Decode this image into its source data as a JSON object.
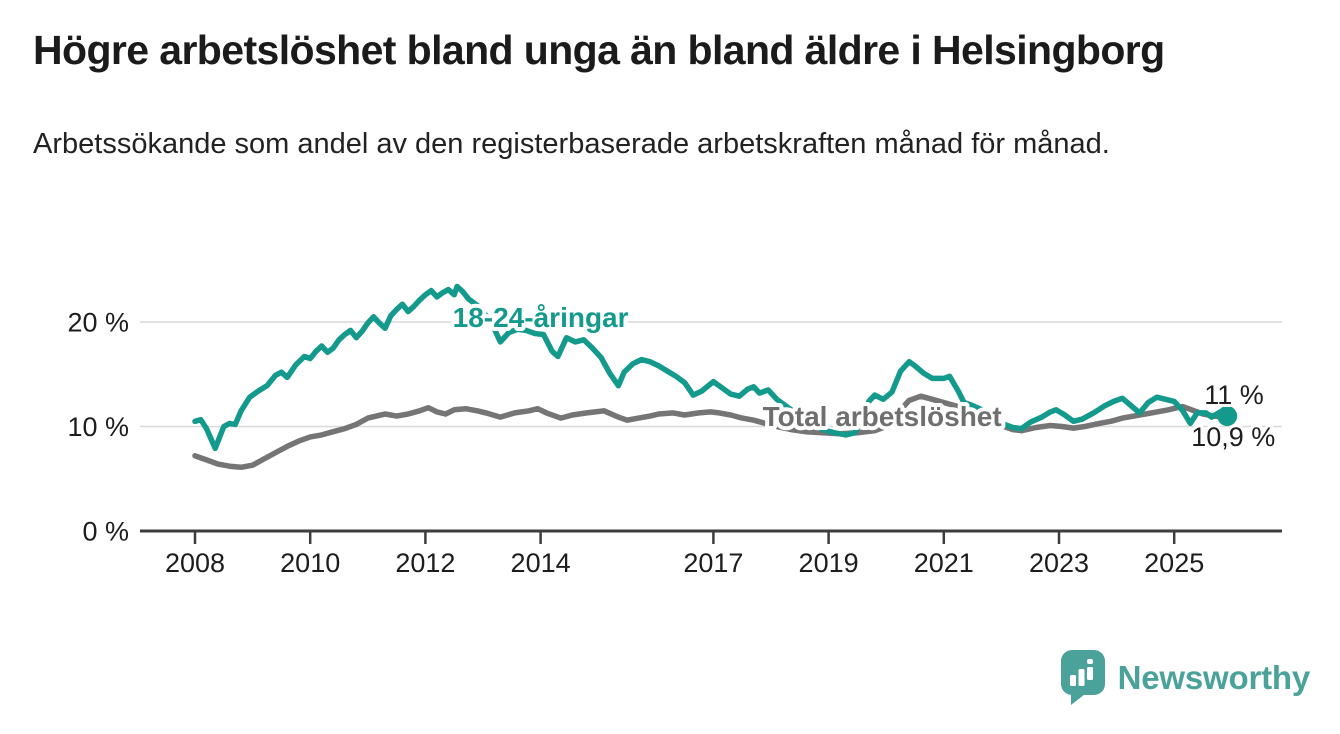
{
  "header": {
    "title": "Högre arbetslöshet bland unga än bland äldre i Helsingborg",
    "subtitle": "Arbetssökande som andel av den registerbaserade arbetskraften månad för månad."
  },
  "footer": {
    "brand": "Newsworthy",
    "logo_icon": "newsworthy-speech-bubble-bar-chart-icon",
    "brand_color": "#4aa29a"
  },
  "colors": {
    "young_series": "#149a8c",
    "total_series": "#757575",
    "total_label": "#6f6f6f",
    "axis": "#3d3d3d",
    "gridline": "#d9d9d9",
    "text": "#1d1d1d",
    "background": "#ffffff"
  },
  "chart_data": {
    "type": "line",
    "title": "Högre arbetslöshet bland unga än bland äldre i Helsingborg",
    "subtitle": "Arbetssökande som andel av den registerbaserade arbetskraften månad för månad.",
    "xlabel": "",
    "ylabel": "",
    "x_unit": "year_decimal_monthly",
    "y_unit": "percent_of_labour_force",
    "xlim": [
      2007.6,
      2026.3
    ],
    "ylim": [
      0,
      24
    ],
    "grid": "horizontal",
    "yticks": [
      {
        "value": 0,
        "label": "0 %"
      },
      {
        "value": 10,
        "label": "10 %"
      },
      {
        "value": 20,
        "label": "20 %"
      }
    ],
    "xticks": [
      {
        "value": 2008,
        "label": "2008"
      },
      {
        "value": 2010,
        "label": "2010"
      },
      {
        "value": 2012,
        "label": "2012"
      },
      {
        "value": 2014,
        "label": "2014"
      },
      {
        "value": 2017,
        "label": "2017"
      },
      {
        "value": 2019,
        "label": "2019"
      },
      {
        "value": 2021,
        "label": "2021"
      },
      {
        "value": 2023,
        "label": "2023"
      },
      {
        "value": 2025,
        "label": "2025"
      }
    ],
    "series": [
      {
        "name": "Total arbetslöshet",
        "color": "#757575",
        "line_width": 5.5,
        "end_dot": false,
        "latest_value_label": "10,9 %",
        "end_label_offset": {
          "dx": -36,
          "dy": 29
        },
        "inline_label": {
          "text": "Total arbetslöshet",
          "x_year": 2019.93,
          "y_percent": 11.0,
          "color": "#6f6f6f"
        },
        "points": [
          [
            2008.0,
            7.2
          ],
          [
            2008.2,
            6.8
          ],
          [
            2008.4,
            6.4
          ],
          [
            2008.6,
            6.2
          ],
          [
            2008.8,
            6.1
          ],
          [
            2009.0,
            6.3
          ],
          [
            2009.2,
            6.9
          ],
          [
            2009.4,
            7.5
          ],
          [
            2009.6,
            8.1
          ],
          [
            2009.8,
            8.6
          ],
          [
            2010.0,
            9.0
          ],
          [
            2010.2,
            9.2
          ],
          [
            2010.4,
            9.5
          ],
          [
            2010.6,
            9.8
          ],
          [
            2010.8,
            10.2
          ],
          [
            2011.0,
            10.8
          ],
          [
            2011.15,
            11.0
          ],
          [
            2011.3,
            11.2
          ],
          [
            2011.5,
            11.0
          ],
          [
            2011.7,
            11.2
          ],
          [
            2011.9,
            11.5
          ],
          [
            2012.05,
            11.8
          ],
          [
            2012.2,
            11.4
          ],
          [
            2012.35,
            11.2
          ],
          [
            2012.5,
            11.6
          ],
          [
            2012.7,
            11.7
          ],
          [
            2012.9,
            11.5
          ],
          [
            2013.05,
            11.3
          ],
          [
            2013.3,
            10.9
          ],
          [
            2013.55,
            11.3
          ],
          [
            2013.8,
            11.5
          ],
          [
            2013.95,
            11.7
          ],
          [
            2014.1,
            11.3
          ],
          [
            2014.35,
            10.8
          ],
          [
            2014.55,
            11.1
          ],
          [
            2014.8,
            11.3
          ],
          [
            2014.95,
            11.4
          ],
          [
            2015.1,
            11.5
          ],
          [
            2015.35,
            10.9
          ],
          [
            2015.5,
            10.6
          ],
          [
            2015.7,
            10.8
          ],
          [
            2015.9,
            11.0
          ],
          [
            2016.05,
            11.2
          ],
          [
            2016.3,
            11.3
          ],
          [
            2016.5,
            11.1
          ],
          [
            2016.75,
            11.3
          ],
          [
            2016.95,
            11.4
          ],
          [
            2017.1,
            11.3
          ],
          [
            2017.3,
            11.1
          ],
          [
            2017.5,
            10.8
          ],
          [
            2017.7,
            10.6
          ],
          [
            2017.9,
            10.3
          ],
          [
            2018.1,
            10.0
          ],
          [
            2018.35,
            9.7
          ],
          [
            2018.6,
            9.5
          ],
          [
            2018.9,
            9.4
          ],
          [
            2019.2,
            9.3
          ],
          [
            2019.5,
            9.4
          ],
          [
            2019.8,
            9.6
          ],
          [
            2020.0,
            10.0
          ],
          [
            2020.2,
            11.3
          ],
          [
            2020.4,
            12.5
          ],
          [
            2020.6,
            12.9
          ],
          [
            2020.8,
            12.6
          ],
          [
            2021.0,
            12.3
          ],
          [
            2021.25,
            11.9
          ],
          [
            2021.5,
            11.3
          ],
          [
            2021.75,
            10.7
          ],
          [
            2022.0,
            10.1
          ],
          [
            2022.2,
            9.7
          ],
          [
            2022.35,
            9.6
          ],
          [
            2022.6,
            9.9
          ],
          [
            2022.85,
            10.1
          ],
          [
            2023.05,
            10.0
          ],
          [
            2023.25,
            9.85
          ],
          [
            2023.45,
            10.0
          ],
          [
            2023.7,
            10.3
          ],
          [
            2023.9,
            10.5
          ],
          [
            2024.1,
            10.8
          ],
          [
            2024.3,
            11.0
          ],
          [
            2024.5,
            11.2
          ],
          [
            2024.7,
            11.4
          ],
          [
            2024.9,
            11.6
          ],
          [
            2025.05,
            11.8
          ],
          [
            2025.15,
            11.9
          ],
          [
            2025.3,
            11.6
          ],
          [
            2025.5,
            11.2
          ],
          [
            2025.7,
            11.0
          ],
          [
            2025.92,
            10.9
          ]
        ]
      },
      {
        "name": "18-24-åringar",
        "color": "#149a8c",
        "line_width": 5.5,
        "end_dot": true,
        "end_dot_radius": 10,
        "latest_value_label": "11 %",
        "end_label_offset": {
          "dx": -23,
          "dy": -12
        },
        "inline_label": {
          "text": "18-24-åringar",
          "x_year": 2014.0,
          "y_percent": 20.5,
          "color": "#149a8c"
        },
        "points": [
          [
            2008.0,
            10.5
          ],
          [
            2008.1,
            10.65
          ],
          [
            2008.2,
            9.8
          ],
          [
            2008.35,
            7.9
          ],
          [
            2008.5,
            10.0
          ],
          [
            2008.6,
            10.3
          ],
          [
            2008.7,
            10.2
          ],
          [
            2008.8,
            11.5
          ],
          [
            2008.95,
            12.8
          ],
          [
            2009.1,
            13.4
          ],
          [
            2009.25,
            13.9
          ],
          [
            2009.4,
            14.9
          ],
          [
            2009.5,
            15.2
          ],
          [
            2009.6,
            14.7
          ],
          [
            2009.75,
            15.9
          ],
          [
            2009.9,
            16.7
          ],
          [
            2010.0,
            16.5
          ],
          [
            2010.1,
            17.2
          ],
          [
            2010.2,
            17.7
          ],
          [
            2010.3,
            17.1
          ],
          [
            2010.4,
            17.5
          ],
          [
            2010.5,
            18.3
          ],
          [
            2010.6,
            18.8
          ],
          [
            2010.7,
            19.2
          ],
          [
            2010.8,
            18.5
          ],
          [
            2010.9,
            19.1
          ],
          [
            2011.0,
            19.9
          ],
          [
            2011.1,
            20.5
          ],
          [
            2011.2,
            19.9
          ],
          [
            2011.3,
            19.4
          ],
          [
            2011.4,
            20.6
          ],
          [
            2011.5,
            21.2
          ],
          [
            2011.6,
            21.7
          ],
          [
            2011.7,
            21.0
          ],
          [
            2011.8,
            21.5
          ],
          [
            2011.9,
            22.1
          ],
          [
            2012.0,
            22.6
          ],
          [
            2012.1,
            23.0
          ],
          [
            2012.2,
            22.4
          ],
          [
            2012.3,
            22.8
          ],
          [
            2012.4,
            23.1
          ],
          [
            2012.5,
            22.6
          ],
          [
            2012.55,
            23.4
          ],
          [
            2012.65,
            22.9
          ],
          [
            2012.75,
            22.2
          ],
          [
            2012.9,
            21.6
          ],
          [
            2013.0,
            21.0
          ],
          [
            2013.15,
            19.9
          ],
          [
            2013.3,
            18.1
          ],
          [
            2013.45,
            19.0
          ],
          [
            2013.6,
            19.3
          ],
          [
            2013.75,
            19.2
          ],
          [
            2013.9,
            18.9
          ],
          [
            2014.05,
            18.8
          ],
          [
            2014.2,
            17.2
          ],
          [
            2014.3,
            16.7
          ],
          [
            2014.45,
            18.5
          ],
          [
            2014.6,
            18.1
          ],
          [
            2014.75,
            18.3
          ],
          [
            2014.9,
            17.5
          ],
          [
            2015.05,
            16.6
          ],
          [
            2015.2,
            15.1
          ],
          [
            2015.35,
            13.9
          ],
          [
            2015.45,
            15.2
          ],
          [
            2015.6,
            16.0
          ],
          [
            2015.75,
            16.4
          ],
          [
            2015.9,
            16.2
          ],
          [
            2016.05,
            15.8
          ],
          [
            2016.2,
            15.3
          ],
          [
            2016.35,
            14.8
          ],
          [
            2016.5,
            14.2
          ],
          [
            2016.65,
            13.0
          ],
          [
            2016.8,
            13.4
          ],
          [
            2017.0,
            14.3
          ],
          [
            2017.15,
            13.7
          ],
          [
            2017.3,
            13.1
          ],
          [
            2017.45,
            12.9
          ],
          [
            2017.6,
            13.6
          ],
          [
            2017.7,
            13.8
          ],
          [
            2017.8,
            13.2
          ],
          [
            2017.95,
            13.5
          ],
          [
            2018.1,
            12.6
          ],
          [
            2018.3,
            11.8
          ],
          [
            2018.5,
            11.0
          ],
          [
            2018.7,
            10.3
          ],
          [
            2018.9,
            9.7
          ],
          [
            2019.1,
            9.4
          ],
          [
            2019.3,
            9.2
          ],
          [
            2019.45,
            9.4
          ],
          [
            2019.55,
            10.3
          ],
          [
            2019.7,
            12.4
          ],
          [
            2019.8,
            13.0
          ],
          [
            2019.95,
            12.6
          ],
          [
            2020.1,
            13.3
          ],
          [
            2020.25,
            15.3
          ],
          [
            2020.4,
            16.2
          ],
          [
            2020.5,
            15.8
          ],
          [
            2020.65,
            15.1
          ],
          [
            2020.8,
            14.6
          ],
          [
            2021.0,
            14.6
          ],
          [
            2021.1,
            14.8
          ],
          [
            2021.25,
            13.4
          ],
          [
            2021.35,
            12.3
          ],
          [
            2021.5,
            12.0
          ],
          [
            2021.7,
            11.5
          ],
          [
            2021.9,
            10.8
          ],
          [
            2022.05,
            10.2
          ],
          [
            2022.2,
            9.9
          ],
          [
            2022.35,
            9.8
          ],
          [
            2022.5,
            10.4
          ],
          [
            2022.7,
            10.9
          ],
          [
            2022.85,
            11.4
          ],
          [
            2022.95,
            11.6
          ],
          [
            2023.1,
            11.1
          ],
          [
            2023.25,
            10.5
          ],
          [
            2023.4,
            10.7
          ],
          [
            2023.6,
            11.3
          ],
          [
            2023.8,
            12.0
          ],
          [
            2023.95,
            12.4
          ],
          [
            2024.1,
            12.7
          ],
          [
            2024.25,
            12.0
          ],
          [
            2024.4,
            11.3
          ],
          [
            2024.55,
            12.3
          ],
          [
            2024.7,
            12.8
          ],
          [
            2024.85,
            12.6
          ],
          [
            2025.0,
            12.4
          ],
          [
            2025.15,
            11.5
          ],
          [
            2025.28,
            10.3
          ],
          [
            2025.4,
            11.3
          ],
          [
            2025.55,
            11.3
          ],
          [
            2025.65,
            10.9
          ],
          [
            2025.8,
            11.4
          ],
          [
            2025.92,
            11.0
          ]
        ]
      }
    ],
    "end_value_labels": [
      "11 %",
      "10,9 %"
    ],
    "legend_position": "inline-on-lines"
  }
}
